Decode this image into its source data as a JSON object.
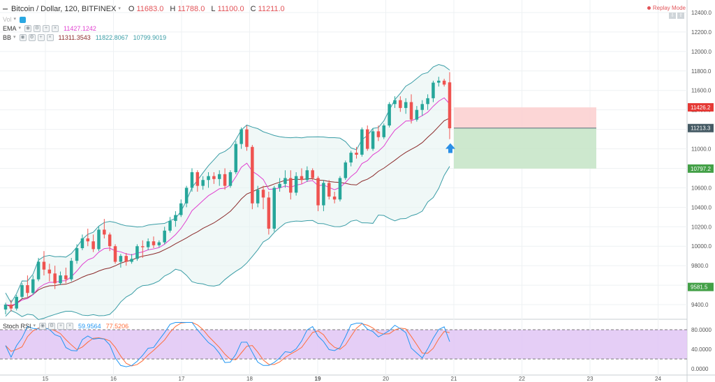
{
  "header": {
    "symbol": "Bitcoin / Dollar, 120, BITFINEX",
    "open_label": "O",
    "open": "11683.0",
    "high_label": "H",
    "high": "11788.0",
    "low_label": "L",
    "low": "11100.0",
    "close_label": "C",
    "close": "11211.0",
    "replay_mode": "Replay Mode"
  },
  "indicators": {
    "vol_label": "Vol",
    "ema_label": "EMA",
    "ema_value": "11427.1242",
    "bb_label": "BB",
    "bb_basis": "11311.3543",
    "bb_upper": "11822.8067",
    "bb_lower": "10799.9019",
    "stoch_label": "Stoch RSI",
    "stoch_k": "59.9564",
    "stoch_d": "77.5206"
  },
  "colors": {
    "up": "#26a69a",
    "down": "#ef5350",
    "ema": "#e040d0",
    "bb_band": "#3a9da6",
    "bb_basis": "#8b2b2b",
    "stoch_k": "#2196f3",
    "stoch_d": "#ff6d3a",
    "stoch_fill": "#e1c5f5",
    "target_zone": "#c8e6c9",
    "stop_zone": "#fbcfcf",
    "arrow": "#2a8fe6"
  },
  "price_axis": {
    "ticks": [
      "12400.0",
      "12200.0",
      "12000.0",
      "11800.0",
      "11600.0",
      "11400.0",
      "11200.0",
      "11000.0",
      "10800.0",
      "10600.0",
      "10400.0",
      "10200.0",
      "10000.0",
      "9800.0",
      "9600.0",
      "9400.0"
    ],
    "ymax": 12400,
    "ymin": 9400
  },
  "price_labels": [
    {
      "text": "11426.2",
      "value": 11426.2,
      "color": "#e53935"
    },
    {
      "text": "11213.3",
      "value": 11213.3,
      "color": "#455a64"
    },
    {
      "text": "10797.2",
      "value": 10797.2,
      "color": "#43a047"
    },
    {
      "text": "9581.5",
      "value": 9581.5,
      "color": "#43a047"
    }
  ],
  "stoch_axis": {
    "ticks": [
      "80.0000",
      "40.0000",
      "0.0000"
    ],
    "levels": [
      80,
      40,
      0
    ],
    "bands": [
      20,
      80
    ]
  },
  "time_axis": {
    "labels": [
      "15",
      "16",
      "17",
      "18",
      "19",
      "20",
      "21",
      "22",
      "23",
      "24"
    ],
    "bold": "19"
  },
  "position": {
    "entry": 11213.3,
    "stop": 11426.2,
    "target": 10797.2
  },
  "chart_data": {
    "type": "candlestick",
    "title": "Bitcoin / Dollar, 120, BITFINEX",
    "candles": [
      [
        9350,
        9420,
        9300,
        9400
      ],
      [
        9400,
        9450,
        9330,
        9360
      ],
      [
        9360,
        9500,
        9340,
        9480
      ],
      [
        9480,
        9620,
        9460,
        9600
      ],
      [
        9600,
        9700,
        9480,
        9520
      ],
      [
        9520,
        9700,
        9500,
        9660
      ],
      [
        9660,
        9880,
        9640,
        9840
      ],
      [
        9840,
        9950,
        9700,
        9760
      ],
      [
        9760,
        9820,
        9640,
        9720
      ],
      [
        9720,
        9800,
        9560,
        9620
      ],
      [
        9620,
        9740,
        9600,
        9700
      ],
      [
        9700,
        9780,
        9620,
        9660
      ],
      [
        9660,
        9880,
        9640,
        9850
      ],
      [
        9850,
        10020,
        9820,
        9980
      ],
      [
        9980,
        10120,
        9960,
        10080
      ],
      [
        10080,
        10180,
        10000,
        10050
      ],
      [
        10050,
        10120,
        9940,
        9970
      ],
      [
        9970,
        10200,
        9950,
        10170
      ],
      [
        10170,
        10280,
        10080,
        10120
      ],
      [
        10120,
        10140,
        9950,
        10000
      ],
      [
        10000,
        10020,
        9820,
        9840
      ],
      [
        9840,
        9920,
        9780,
        9900
      ],
      [
        9900,
        9930,
        9800,
        9840
      ],
      [
        9840,
        9920,
        9820,
        9870
      ],
      [
        9870,
        10020,
        9850,
        10000
      ],
      [
        10000,
        10060,
        9880,
        9990
      ],
      [
        9990,
        10080,
        9960,
        10050
      ],
      [
        10050,
        10100,
        9980,
        10010
      ],
      [
        10010,
        10060,
        9990,
        10040
      ],
      [
        10040,
        10200,
        10020,
        10160
      ],
      [
        10160,
        10300,
        10140,
        10260
      ],
      [
        10260,
        10360,
        10200,
        10320
      ],
      [
        10320,
        10480,
        10300,
        10440
      ],
      [
        10440,
        10620,
        10400,
        10600
      ],
      [
        10600,
        10800,
        10560,
        10760
      ],
      [
        10760,
        10780,
        10560,
        10620
      ],
      [
        10620,
        10720,
        10580,
        10680
      ],
      [
        10680,
        10760,
        10600,
        10720
      ],
      [
        10720,
        10760,
        10640,
        10690
      ],
      [
        10690,
        10780,
        10620,
        10740
      ],
      [
        10740,
        10800,
        10580,
        10620
      ],
      [
        10620,
        10780,
        10600,
        10760
      ],
      [
        10760,
        11080,
        10740,
        11050
      ],
      [
        11050,
        11220,
        11000,
        11200
      ],
      [
        11200,
        11240,
        10980,
        11020
      ],
      [
        11020,
        11040,
        10380,
        10440
      ],
      [
        10440,
        10620,
        10400,
        10580
      ],
      [
        10580,
        10620,
        10380,
        10500
      ],
      [
        10500,
        10560,
        10120,
        10180
      ],
      [
        10180,
        10620,
        10150,
        10600
      ],
      [
        10600,
        10700,
        10560,
        10640
      ],
      [
        10640,
        10780,
        10600,
        10700
      ],
      [
        10700,
        10780,
        10480,
        10550
      ],
      [
        10550,
        10760,
        10520,
        10720
      ],
      [
        10720,
        10800,
        10640,
        10680
      ],
      [
        10680,
        10820,
        10660,
        10780
      ],
      [
        10780,
        10800,
        10680,
        10700
      ],
      [
        10700,
        10720,
        10360,
        10420
      ],
      [
        10420,
        10680,
        10360,
        10650
      ],
      [
        10650,
        10680,
        10480,
        10510
      ],
      [
        10510,
        10560,
        10440,
        10480
      ],
      [
        10480,
        10720,
        10460,
        10700
      ],
      [
        10700,
        10880,
        10680,
        10860
      ],
      [
        10860,
        10980,
        10820,
        10960
      ],
      [
        10960,
        11020,
        10900,
        10940
      ],
      [
        10940,
        11220,
        10920,
        11200
      ],
      [
        11200,
        11240,
        10980,
        11000
      ],
      [
        11000,
        11210,
        10980,
        11180
      ],
      [
        11180,
        11240,
        11080,
        11120
      ],
      [
        11120,
        11260,
        11100,
        11240
      ],
      [
        11240,
        11480,
        11220,
        11460
      ],
      [
        11460,
        11540,
        11420,
        11500
      ],
      [
        11500,
        11540,
        11380,
        11420
      ],
      [
        11420,
        11520,
        11360,
        11480
      ],
      [
        11480,
        11560,
        11260,
        11300
      ],
      [
        11300,
        11440,
        11280,
        11400
      ],
      [
        11400,
        11500,
        11340,
        11460
      ],
      [
        11460,
        11560,
        11400,
        11520
      ],
      [
        11520,
        11700,
        11480,
        11680
      ],
      [
        11680,
        11740,
        11640,
        11700
      ],
      [
        11700,
        11720,
        11640,
        11660
      ],
      [
        11683,
        11788,
        11100,
        11211
      ]
    ]
  }
}
